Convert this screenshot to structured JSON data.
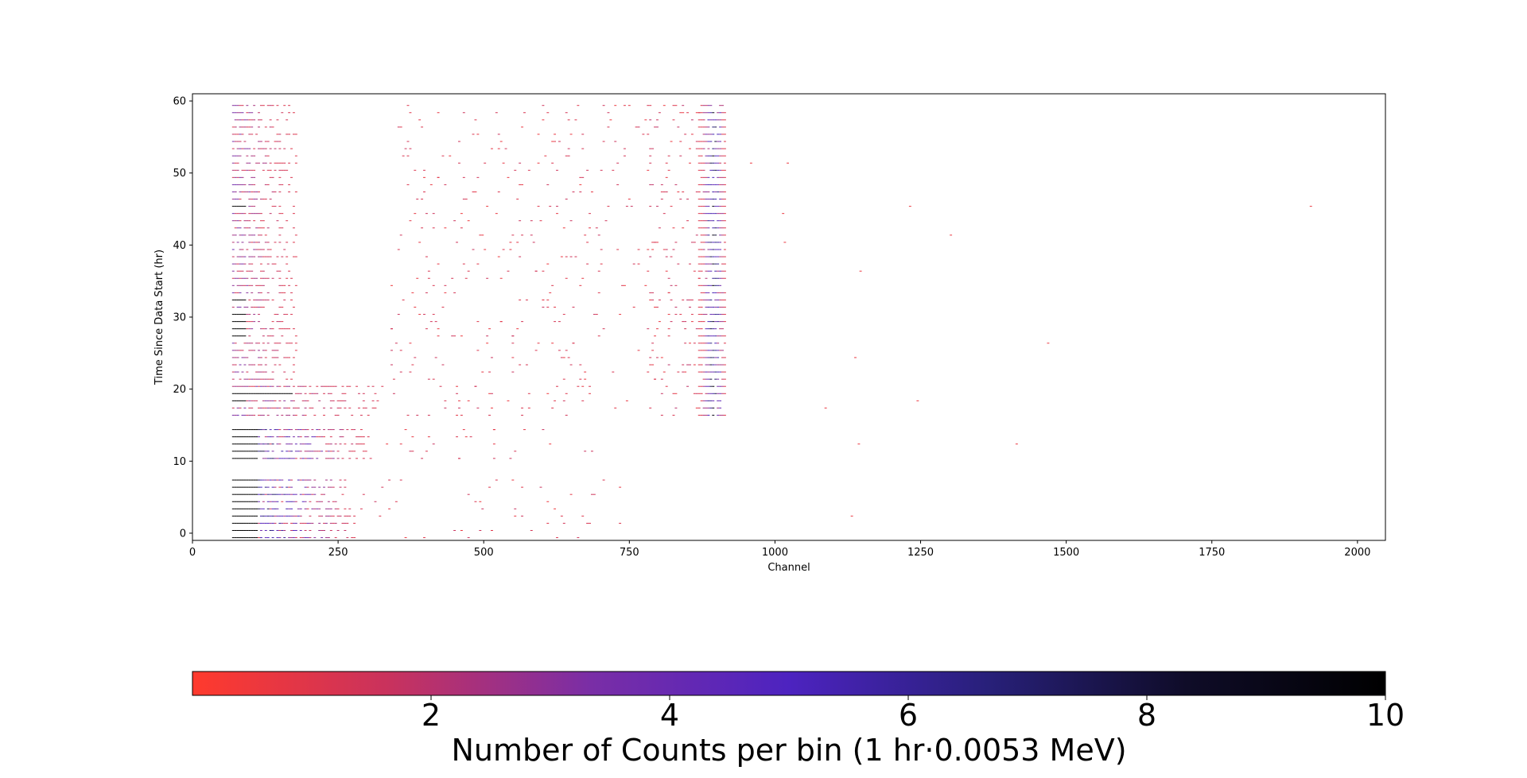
{
  "chart_data": {
    "type": "heatmap",
    "title": "",
    "xlabel": "Channel",
    "ylabel": "Time Since Data Start (hr)",
    "xlim": [
      0,
      2048
    ],
    "ylim": [
      61,
      -1
    ],
    "y_inverted": true,
    "xticks": [
      0,
      250,
      500,
      750,
      1000,
      1250,
      1500,
      1750,
      2000
    ],
    "yticks": [
      0,
      10,
      20,
      30,
      40,
      50,
      60
    ],
    "bin_width_channels": 4,
    "bin_height_hr": 1,
    "colorbar": {
      "label": "Number of Counts per bin (1 hr·0.0053 MeV)",
      "min": 0,
      "max": 10,
      "ticks": [
        2,
        4,
        6,
        8,
        10
      ],
      "colors": [
        "#ff3a2d",
        "#c8325e",
        "#7a2ea6",
        "#4d23c0",
        "#28207a",
        "#0f0c28",
        "#000000"
      ],
      "orientation": "horizontal"
    },
    "annotations": {
      "empty_rows_hr": [
        9,
        10,
        16
      ],
      "isolated_counts": [
        [
          1130,
          3
        ],
        [
          1142,
          13
        ],
        [
          1413,
          13
        ],
        [
          1085,
          18
        ],
        [
          1243,
          19
        ],
        [
          1136,
          25
        ],
        [
          1467,
          27
        ],
        [
          1145,
          37
        ],
        [
          1015,
          41
        ],
        [
          1300,
          42
        ],
        [
          1012,
          45
        ],
        [
          1230,
          46
        ],
        [
          1918,
          46
        ],
        [
          957,
          52
        ],
        [
          1020,
          52
        ]
      ]
    }
  }
}
